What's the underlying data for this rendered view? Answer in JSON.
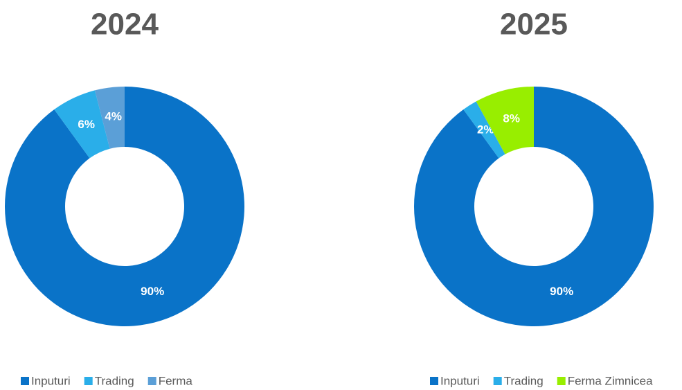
{
  "chart_data": [
    {
      "type": "donut",
      "title": "2024",
      "categories": [
        "Inputuri",
        "Trading",
        "Ferma"
      ],
      "values": [
        90,
        6,
        4
      ],
      "value_labels": [
        "90%",
        "6%",
        "4%"
      ],
      "colors": [
        "#0a73c8",
        "#2aaee9",
        "#5b9fd7"
      ],
      "legend": "bottom"
    },
    {
      "type": "donut",
      "title": "2025",
      "categories": [
        "Inputuri",
        "Trading",
        "Ferma Zimnicea"
      ],
      "values": [
        90,
        2,
        8
      ],
      "value_labels": [
        "90%",
        "2%",
        "8%"
      ],
      "colors": [
        "#0a73c8",
        "#2aaee9",
        "#98ee00"
      ],
      "legend": "bottom"
    }
  ]
}
